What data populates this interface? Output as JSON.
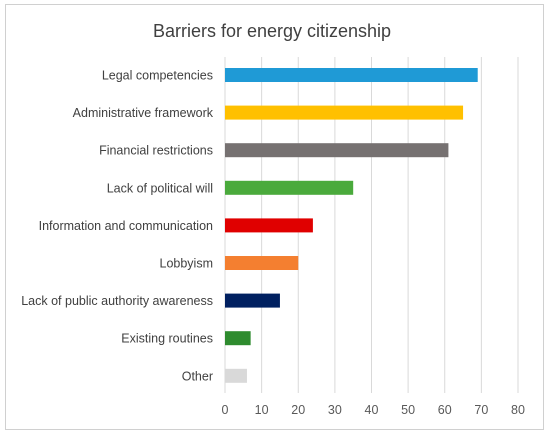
{
  "chart_data": {
    "type": "bar",
    "orientation": "horizontal",
    "title": "Barriers for energy citizenship",
    "xlabel": "",
    "ylabel": "",
    "xlim": [
      0,
      80
    ],
    "x_ticks": [
      0,
      10,
      20,
      30,
      40,
      50,
      60,
      70,
      80
    ],
    "grid": true,
    "legend": "none",
    "categories": [
      "Legal competencies",
      "Administrative framework",
      "Financial restrictions",
      "Lack of political will",
      "Information and communication",
      "Lobbyism",
      "Lack of public authority awareness",
      "Existing routines",
      "Other"
    ],
    "values": [
      69,
      65,
      61,
      35,
      24,
      20,
      15,
      7,
      6
    ],
    "colors": [
      "#1f9ad6",
      "#ffc000",
      "#767171",
      "#4aaa3c",
      "#e00000",
      "#f47f30",
      "#002060",
      "#2e8b2e",
      "#d9d9d9"
    ]
  }
}
